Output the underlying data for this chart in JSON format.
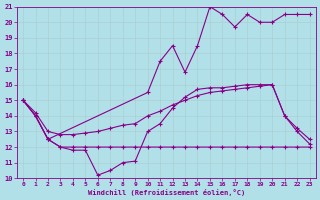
{
  "xlabel": "Windchill (Refroidissement éolien,°C)",
  "xlim": [
    -0.5,
    23.5
  ],
  "ylim": [
    10,
    21
  ],
  "yticks": [
    10,
    11,
    12,
    13,
    14,
    15,
    16,
    17,
    18,
    19,
    20,
    21
  ],
  "xticks": [
    0,
    1,
    2,
    3,
    4,
    5,
    6,
    7,
    8,
    9,
    10,
    11,
    12,
    13,
    14,
    15,
    16,
    17,
    18,
    19,
    20,
    21,
    22,
    23
  ],
  "bg_color": "#b2e0e8",
  "grid_color": "#d0eef0",
  "line_color": "#880088",
  "line1_x": [
    0,
    1,
    2,
    3,
    4,
    5,
    6,
    7,
    8,
    9,
    10,
    11,
    12,
    13,
    14,
    15,
    16,
    17,
    18,
    19,
    20,
    21,
    22,
    23
  ],
  "line1_y": [
    15.0,
    14.0,
    12.5,
    12.0,
    12.0,
    12.0,
    12.0,
    12.0,
    12.0,
    12.0,
    12.0,
    12.0,
    12.0,
    12.0,
    12.0,
    12.0,
    12.0,
    12.0,
    12.0,
    12.0,
    12.0,
    12.0,
    12.0,
    12.0
  ],
  "line2_x": [
    0,
    1,
    2,
    3,
    4,
    5,
    6,
    7,
    8,
    9,
    10,
    11,
    12,
    13,
    14,
    15,
    16,
    17,
    18,
    19,
    20,
    21,
    22,
    23
  ],
  "line2_y": [
    15.0,
    14.0,
    12.5,
    12.0,
    11.8,
    11.8,
    10.2,
    10.5,
    11.0,
    11.1,
    13.0,
    13.5,
    14.5,
    15.2,
    15.7,
    15.8,
    15.8,
    15.9,
    16.0,
    16.0,
    16.0,
    14.0,
    13.0,
    12.2
  ],
  "line3_x": [
    0,
    1,
    2,
    3,
    4,
    5,
    6,
    7,
    8,
    9,
    10,
    11,
    12,
    13,
    14,
    15,
    16,
    17,
    18,
    19,
    20,
    21,
    22,
    23
  ],
  "line3_y": [
    15.0,
    14.2,
    13.0,
    12.8,
    12.8,
    12.9,
    13.0,
    13.2,
    13.4,
    13.5,
    14.0,
    14.3,
    14.7,
    15.0,
    15.3,
    15.5,
    15.6,
    15.7,
    15.8,
    15.9,
    16.0,
    14.0,
    13.2,
    12.5
  ],
  "line4_x": [
    0,
    1,
    2,
    10,
    11,
    12,
    13,
    14,
    15,
    16,
    17,
    18,
    19,
    20,
    21,
    22,
    23
  ],
  "line4_y": [
    15.0,
    14.0,
    12.5,
    15.5,
    17.5,
    18.5,
    16.8,
    18.5,
    21.0,
    20.5,
    19.7,
    20.5,
    20.0,
    20.0,
    20.5,
    20.5,
    20.5
  ]
}
